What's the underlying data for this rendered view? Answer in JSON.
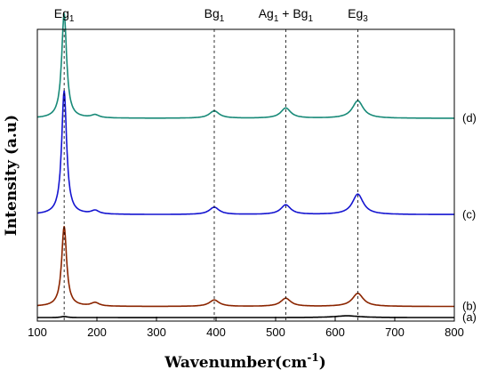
{
  "chart_data": {
    "type": "line",
    "title": "",
    "xlabel": "Wavenumber(cm",
    "xlabel_sup": "-1",
    "xlabel_close": ")",
    "ylabel": "Intensity (a.u)",
    "xlim": [
      100,
      800
    ],
    "ylim": [
      0,
      1
    ],
    "x_ticks": [
      100,
      200,
      300,
      400,
      500,
      600,
      700,
      800
    ],
    "y_ticks_shown": false,
    "grid": false,
    "legend": "none",
    "peak_labels": [
      {
        "base": "Eg",
        "sub": "1",
        "suffix_base": "",
        "suffix_sub": "",
        "x": 145
      },
      {
        "base": "Bg",
        "sub": "1",
        "suffix_base": "",
        "suffix_sub": "",
        "x": 397
      },
      {
        "base": "Ag",
        "sub": "1",
        "suffix_base": " + Bg",
        "suffix_sub": "1",
        "x": 517
      },
      {
        "base": "Eg",
        "sub": "3",
        "suffix_base": "",
        "suffix_sub": "",
        "x": 638
      }
    ],
    "series": [
      {
        "label": "(a)",
        "color": "#000000",
        "baseline": 0.012,
        "peaks": [
          [
            145,
            0.004,
            6
          ],
          [
            620,
            0.006,
            25
          ]
        ]
      },
      {
        "label": "(b)",
        "color": "#8b2500",
        "baseline": 0.05,
        "peaks": [
          [
            145,
            0.275,
            5
          ],
          [
            197,
            0.012,
            8
          ],
          [
            397,
            0.022,
            10
          ],
          [
            517,
            0.028,
            10
          ],
          [
            638,
            0.045,
            11
          ]
        ]
      },
      {
        "label": "(c)",
        "color": "#1515d0",
        "baseline": 0.365,
        "peaks": [
          [
            145,
            0.425,
            5
          ],
          [
            197,
            0.012,
            8
          ],
          [
            397,
            0.025,
            10
          ],
          [
            517,
            0.033,
            10
          ],
          [
            638,
            0.07,
            11
          ]
        ]
      },
      {
        "label": "(d)",
        "color": "#188a78",
        "baseline": 0.695,
        "peaks": [
          [
            145,
            0.36,
            5
          ],
          [
            197,
            0.01,
            8
          ],
          [
            397,
            0.025,
            10
          ],
          [
            517,
            0.035,
            10
          ],
          [
            638,
            0.06,
            11
          ]
        ]
      }
    ]
  }
}
